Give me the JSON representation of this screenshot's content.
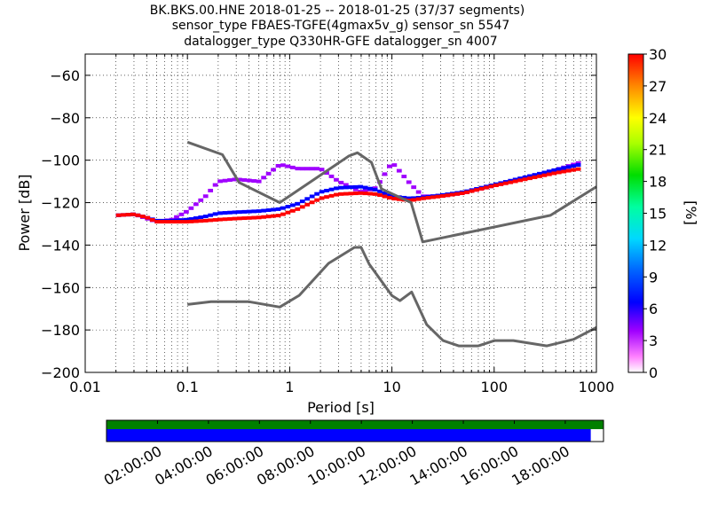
{
  "figure": {
    "title_lines": [
      "BK.BKS.00.HNE   2018-01-25 -- 2018-01-25  (37/37 segments)",
      "sensor_type FBAES-TGFE(4gmax5v_g) sensor_sn 5547",
      "datalogger_type Q330HR-GFE datalogger_sn 4007"
    ]
  },
  "chart_data": {
    "type": "heatmap",
    "title": "BK.BKS.00.HNE   2018-01-25 -- 2018-01-25  (37/37 segments)",
    "xlabel": "Period [s]",
    "ylabel": "Power [dB]",
    "x_scale": "log",
    "xlim": [
      0.01,
      1000
    ],
    "ylim": [
      -200,
      -50
    ],
    "grid": true,
    "x_ticks": [
      {
        "value": 0.01,
        "label": "0.01"
      },
      {
        "value": 0.1,
        "label": "0.1"
      },
      {
        "value": 1,
        "label": "1"
      },
      {
        "value": 10,
        "label": "10"
      },
      {
        "value": 100,
        "label": "100"
      },
      {
        "value": 1000,
        "label": "1000"
      }
    ],
    "y_ticks": [
      {
        "value": -60,
        "label": "−60"
      },
      {
        "value": -80,
        "label": "−80"
      },
      {
        "value": -100,
        "label": "−100"
      },
      {
        "value": -120,
        "label": "−120"
      },
      {
        "value": -140,
        "label": "−140"
      },
      {
        "value": -160,
        "label": "−160"
      },
      {
        "value": -180,
        "label": "−180"
      },
      {
        "value": -200,
        "label": "−200"
      }
    ],
    "colorbar": {
      "label": "[%]",
      "range": [
        0,
        30
      ],
      "ticks": [
        "0",
        "3",
        "6",
        "9",
        "12",
        "15",
        "18",
        "21",
        "24",
        "27",
        "30"
      ]
    },
    "noise_models": {
      "high": {
        "period": [
          0.1,
          0.22,
          0.32,
          0.8,
          3.8,
          4.6,
          6.3,
          7.9,
          15.4,
          20,
          354.8,
          1000
        ],
        "power": [
          -91.5,
          -97.4,
          -110.5,
          -120,
          -98,
          -96.5,
          -101,
          -113.5,
          -120,
          -138.5,
          -126,
          -112.5
        ]
      },
      "low": {
        "period": [
          0.1,
          0.17,
          0.4,
          0.8,
          1.24,
          2.4,
          4.3,
          5,
          6,
          10,
          12,
          15.6,
          21.9,
          31.6,
          45,
          70,
          101,
          154,
          328,
          600,
          1000
        ],
        "power": [
          -168,
          -166.7,
          -166.7,
          -169.2,
          -163.7,
          -148.6,
          -141.1,
          -141.1,
          -149,
          -163.8,
          -166.2,
          -162.1,
          -177.5,
          -185,
          -187.5,
          -187.5,
          -185,
          -185,
          -187.5,
          -184.4,
          -178.8
        ]
      }
    },
    "psd_modes": {
      "period": [
        0.02,
        0.03,
        0.04,
        0.05,
        0.07,
        0.1,
        0.15,
        0.2,
        0.3,
        0.5,
        0.8,
        1.2,
        2,
        3,
        5,
        7,
        10,
        15,
        20,
        30,
        50,
        100,
        200,
        400,
        700
      ],
      "series": [
        {
          "color": "#ff0000",
          "power": [
            -126,
            -125.5,
            -127,
            -129,
            -129,
            -129,
            -128.5,
            -128,
            -127.5,
            -127,
            -126,
            -123,
            -118,
            -116,
            -115.5,
            -116,
            -118,
            -119,
            -118,
            -117,
            -115.5,
            -112,
            -109,
            -106,
            -104
          ]
        },
        {
          "color": "#0000ff",
          "power": [
            -126,
            -125.5,
            -127,
            -128.5,
            -128.5,
            -128,
            -126.5,
            -125,
            -124.5,
            -124,
            -123,
            -120.5,
            -115,
            -113,
            -112.5,
            -114,
            -117,
            -118,
            -117.5,
            -116.5,
            -115,
            -111.5,
            -108,
            -104.5,
            -102
          ]
        },
        {
          "color": "#a000ff",
          "power": [
            -126,
            -125.5,
            -127.5,
            -129,
            -128,
            -124,
            -117,
            -110,
            -109,
            -110,
            -102,
            -104,
            -104,
            -110,
            -115,
            -113,
            -101,
            -111,
            -117,
            -117,
            -115.5,
            -112,
            -108.5,
            -104.5,
            -101
          ]
        }
      ]
    },
    "timeline": {
      "time_labels": [
        "02:00:00",
        "04:00:00",
        "06:00:00",
        "08:00:00",
        "10:00:00",
        "12:00:00",
        "14:00:00",
        "16:00:00",
        "18:00:00"
      ],
      "time_values_hours": [
        2,
        4,
        6,
        8,
        10,
        12,
        14,
        16,
        18
      ],
      "range_hours": [
        0,
        19.5
      ],
      "data_coverage_end_hours": 19.5,
      "segment_coverage_end_hours": 19.0
    }
  },
  "colors": {
    "noise_model": "#666666",
    "coverage_data": "#008000",
    "coverage_segments": "#0000ff"
  }
}
